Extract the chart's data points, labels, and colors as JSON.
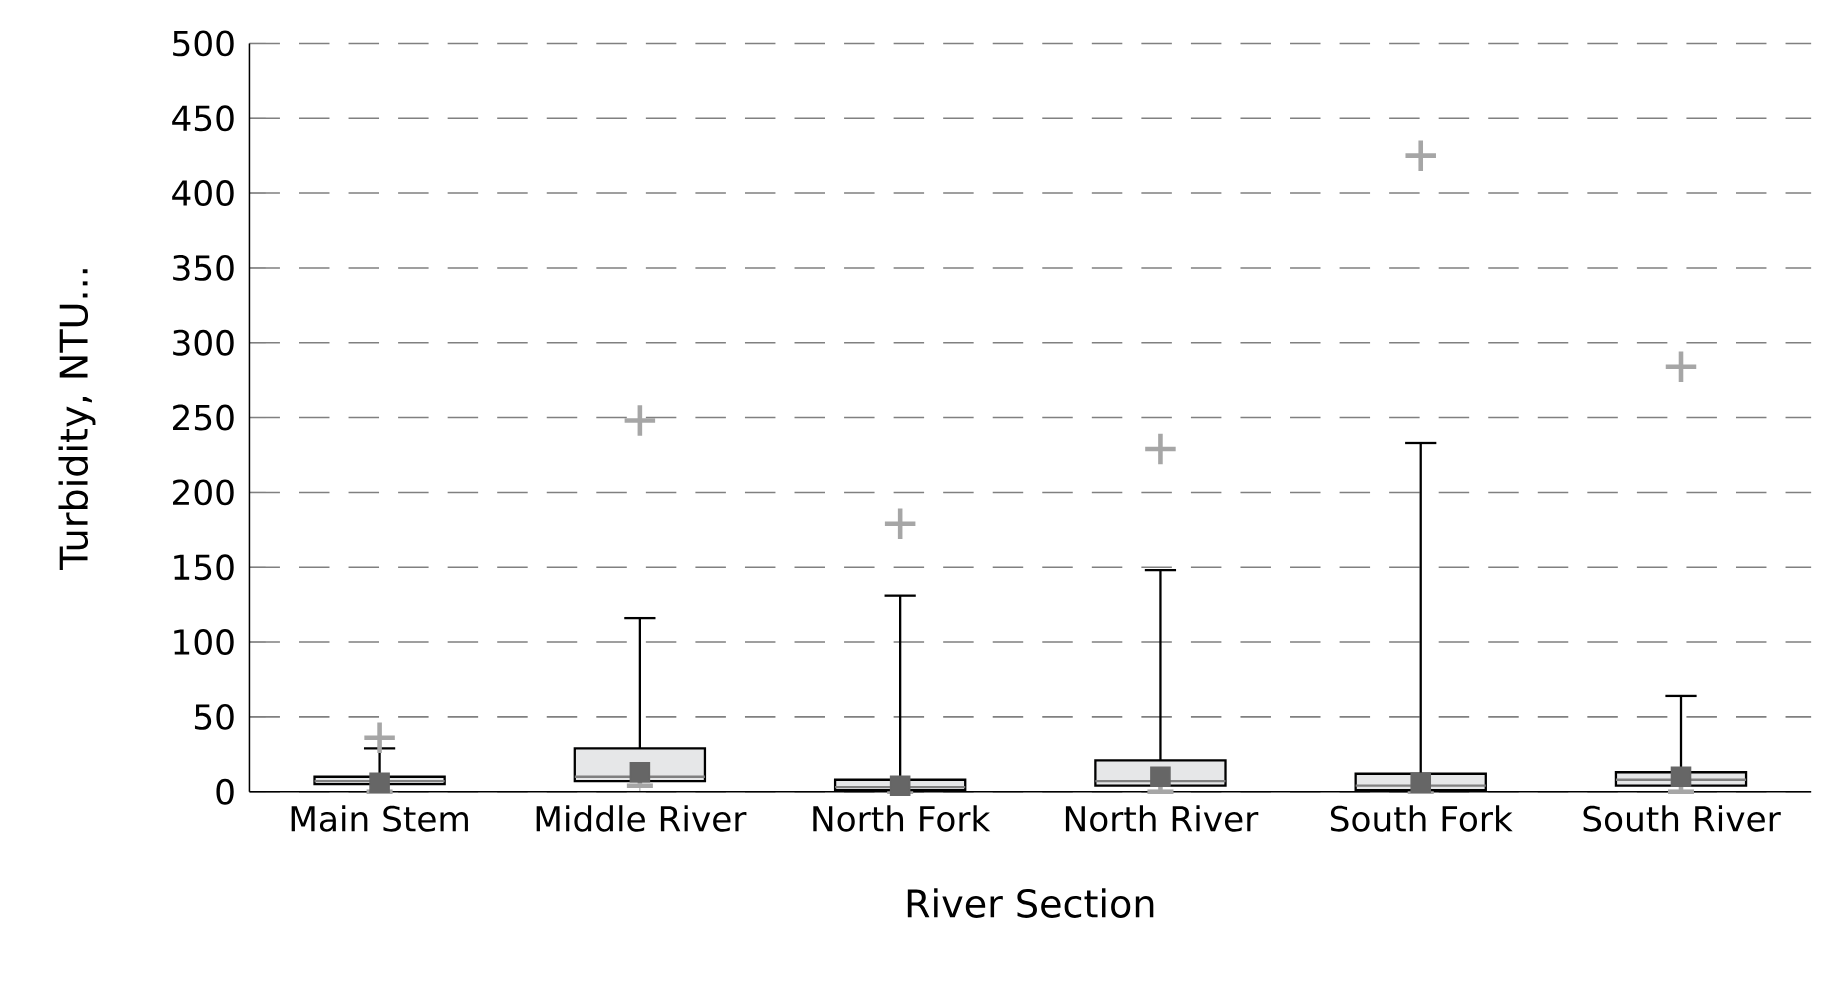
{
  "chart_data": {
    "type": "box",
    "xlabel": "River Section",
    "ylabel": "Turbidity, NTU...",
    "categories": [
      "Main Stem",
      "Middle River",
      "North Fork",
      "North River",
      "South Fork",
      "South River"
    ],
    "boxes": [
      {
        "low": 0,
        "q1": 5,
        "median": 7,
        "q3": 10,
        "high": 29,
        "mean": 6,
        "outliers": [
          36
        ]
      },
      {
        "low": 4,
        "q1": 7,
        "median": 10,
        "q3": 29,
        "high": 116,
        "mean": 13,
        "outliers": [
          248
        ]
      },
      {
        "low": 0,
        "q1": 1,
        "median": 3,
        "q3": 8,
        "high": 131,
        "mean": 4,
        "outliers": [
          179
        ]
      },
      {
        "low": 0,
        "q1": 4,
        "median": 7,
        "q3": 21,
        "high": 148,
        "mean": 10,
        "outliers": [
          229
        ]
      },
      {
        "low": 0,
        "q1": 1,
        "median": 4,
        "q3": 12,
        "high": 233,
        "mean": 6,
        "outliers": [
          425
        ]
      },
      {
        "low": 0,
        "q1": 4,
        "median": 8,
        "q3": 13,
        "high": 64,
        "mean": 10,
        "outliers": [
          284
        ]
      }
    ],
    "color": "#e6e7e8",
    "ylim": [
      0,
      500
    ],
    "yticks": [
      0,
      50,
      100,
      150,
      200,
      250,
      300,
      350,
      400,
      450,
      500
    ],
    "grid": "y",
    "line_style": "dashed"
  }
}
